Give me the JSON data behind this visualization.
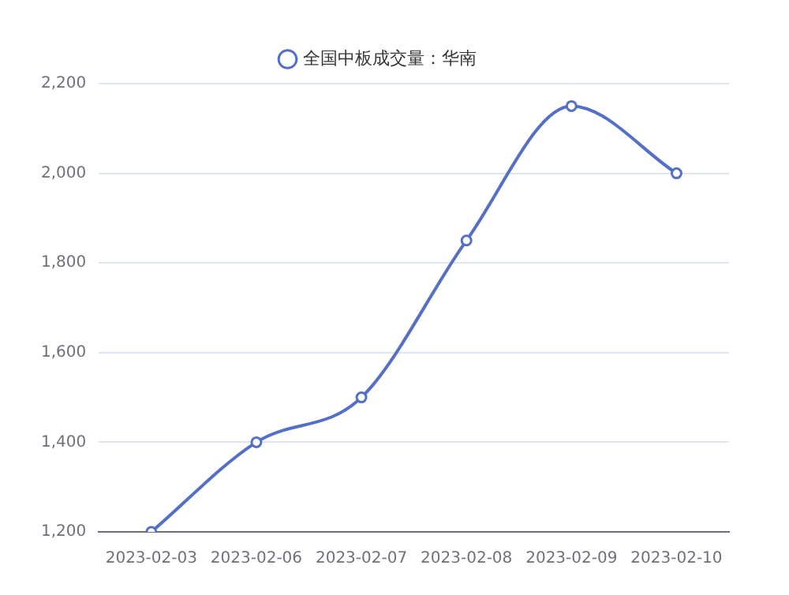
{
  "chart_data": {
    "type": "line",
    "categories": [
      "2023-02-03",
      "2023-02-06",
      "2023-02-07",
      "2023-02-08",
      "2023-02-09",
      "2023-02-10"
    ],
    "series": [
      {
        "name": "全国中板成交量：华南",
        "color": "#5470c6",
        "values": [
          1200,
          1400,
          1500,
          1850,
          2150,
          2000
        ]
      }
    ],
    "ylim": [
      1200,
      2200
    ],
    "yticks": [
      {
        "value": 1200,
        "label": "1,200"
      },
      {
        "value": 1400,
        "label": "1,400"
      },
      {
        "value": 1600,
        "label": "1,600"
      },
      {
        "value": 1800,
        "label": "1,800"
      },
      {
        "value": 2000,
        "label": "2,000"
      },
      {
        "value": 2200,
        "label": "2,200"
      }
    ],
    "grid": "y",
    "legend": "top",
    "marker": "circle"
  }
}
